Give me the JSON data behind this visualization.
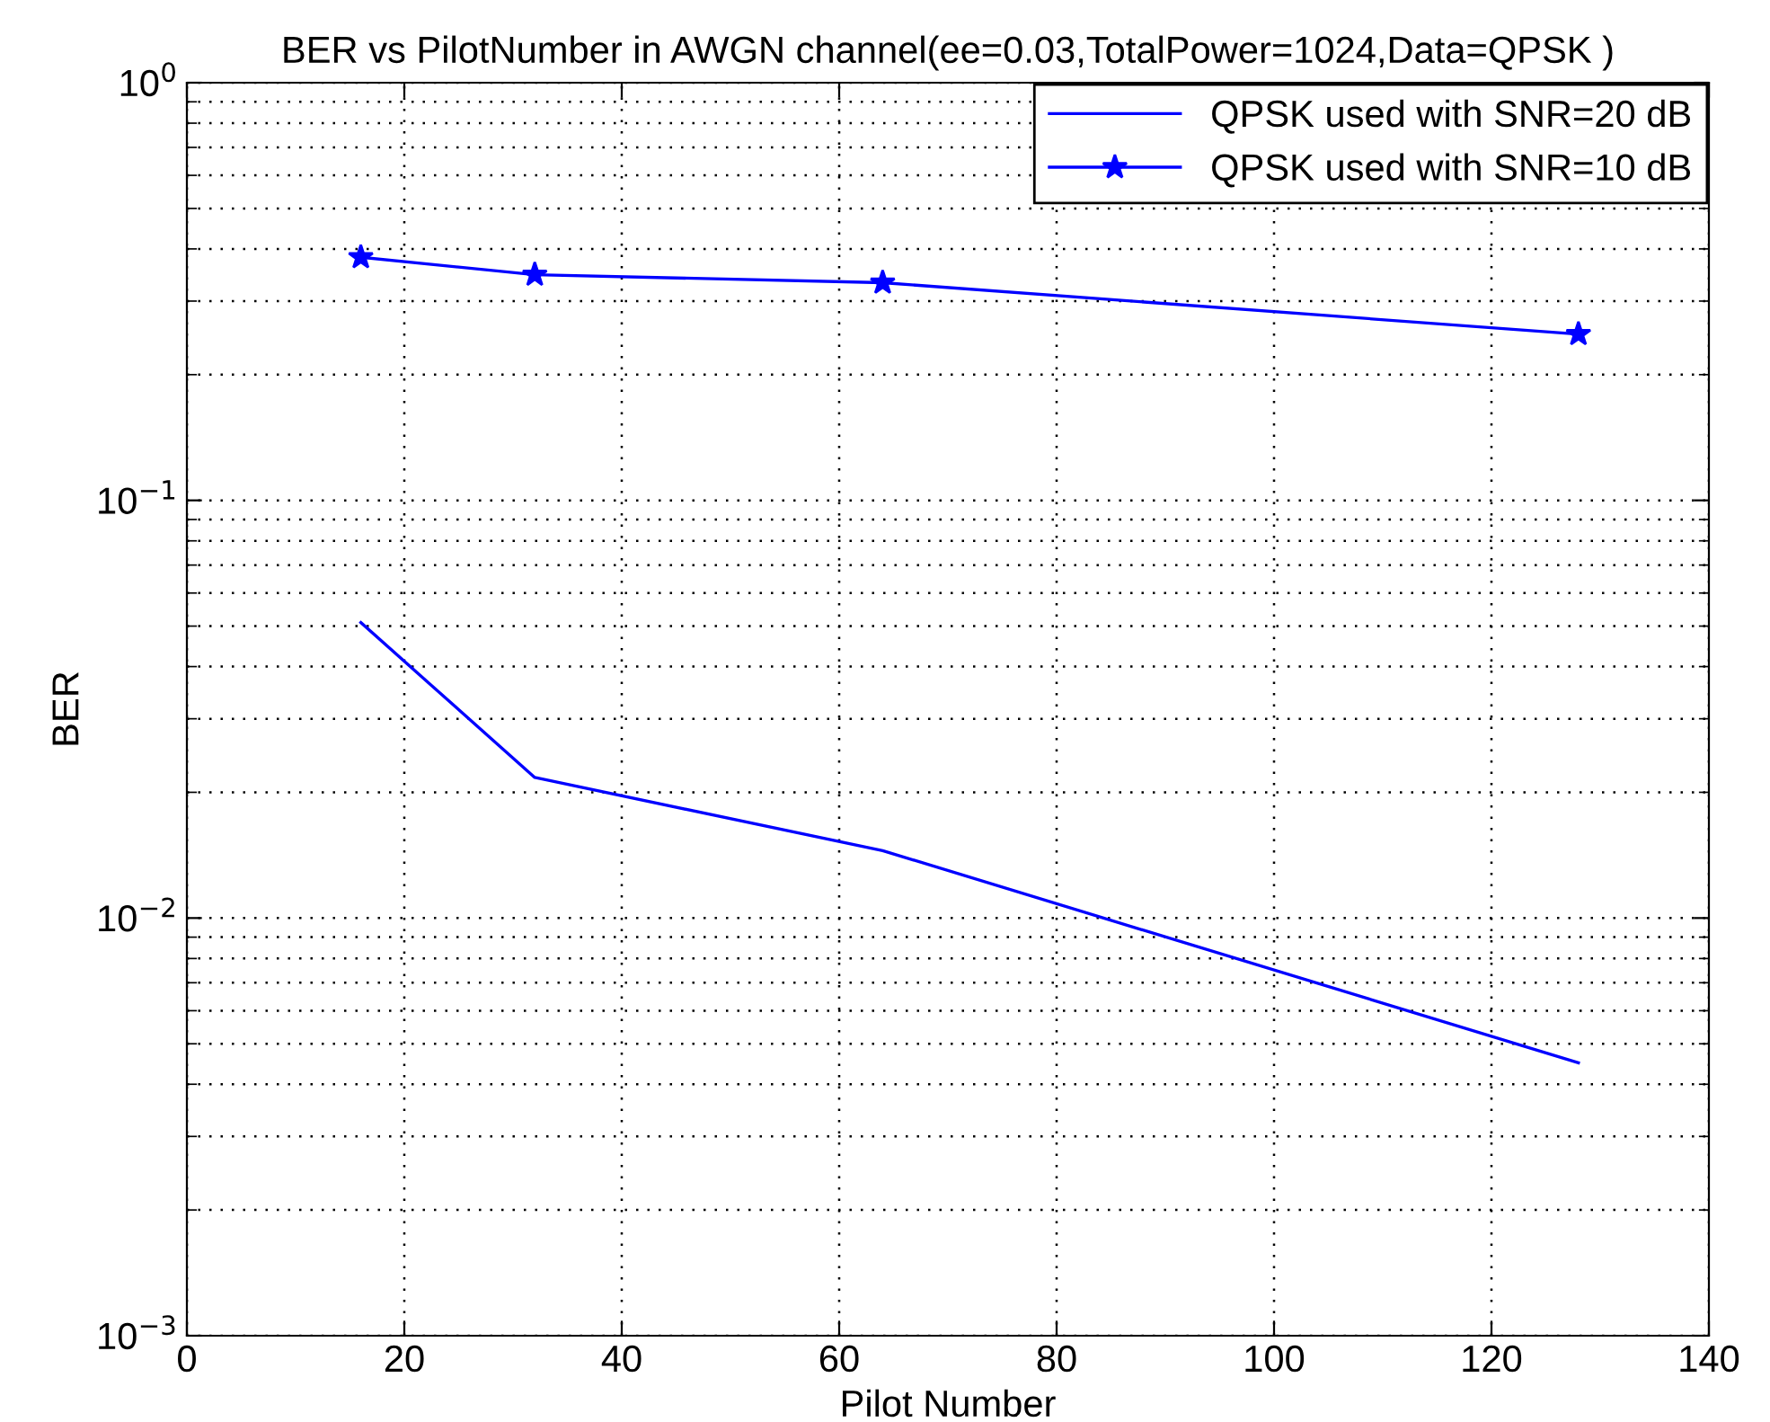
{
  "chart_data": {
    "type": "line",
    "title": "BER vs PilotNumber in AWGN channel(ee=0.03,TotalPower=1024,Data=QPSK )",
    "xlabel": "Pilot Number",
    "ylabel": "BER",
    "x": [
      16,
      32,
      64,
      128
    ],
    "series": [
      {
        "name": "QPSK used with SNR=20 dB",
        "color": "#0000ff",
        "marker": "none",
        "values": [
          0.051,
          0.0217,
          0.0145,
          0.0045
        ]
      },
      {
        "name": "QPSK used with SNR=10 dB",
        "color": "#0000ff",
        "marker": "star",
        "values": [
          0.382,
          0.347,
          0.332,
          0.25
        ]
      }
    ],
    "xlim": [
      0,
      140
    ],
    "xticks": [
      0,
      20,
      40,
      60,
      80,
      100,
      120,
      140
    ],
    "ylim": [
      0.001,
      1
    ],
    "yticks": [
      {
        "value": 0.001,
        "label": "10$^{−3}$"
      },
      {
        "value": 0.01,
        "label": "10$^{−2}$"
      },
      {
        "value": 0.1,
        "label": "10$^{−1}$"
      },
      {
        "value": 1,
        "label": "10$^{0}$"
      }
    ],
    "log": "y",
    "grid": true,
    "legend": "top right",
    "line_style": "solid"
  }
}
